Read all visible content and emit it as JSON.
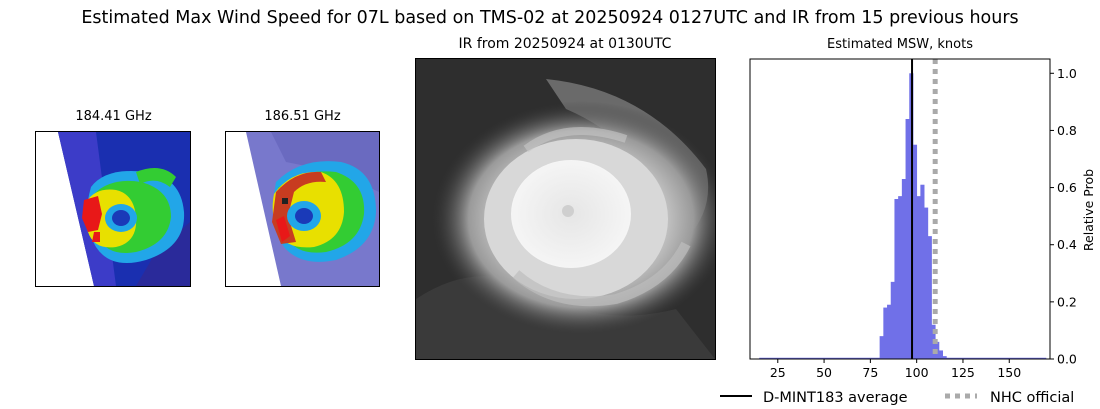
{
  "figure": {
    "title": "Estimated Max Wind Speed for 07L based on TMS-02 at 20250924 0127UTC and IR from 15 previous hours"
  },
  "panels": {
    "mw1_title": "184.41 GHz",
    "mw2_title": "186.51 GHz",
    "ir_title": "IR from 20250924 at 0130UTC"
  },
  "chart_data": {
    "type": "bar",
    "title": "Estimated MSW, knots",
    "xlabel": "",
    "ylabel": "Relative Prob",
    "xlim": [
      10,
      172
    ],
    "ylim": [
      0,
      1.05
    ],
    "xticks": [
      25,
      50,
      75,
      100,
      125,
      150
    ],
    "yticks": [
      0.0,
      0.2,
      0.4,
      0.6,
      0.8,
      1.0
    ],
    "ytick_labels": [
      "0.0",
      "0.2",
      "0.4",
      "0.6",
      "0.8",
      "1.0"
    ],
    "bar_color": "#7070e8",
    "bins": [
      {
        "x": 81,
        "value": 0.08
      },
      {
        "x": 83,
        "value": 0.18
      },
      {
        "x": 85,
        "value": 0.19
      },
      {
        "x": 87,
        "value": 0.27
      },
      {
        "x": 89,
        "value": 0.56
      },
      {
        "x": 91,
        "value": 0.57
      },
      {
        "x": 93,
        "value": 0.63
      },
      {
        "x": 95,
        "value": 0.84
      },
      {
        "x": 97,
        "value": 1.0
      },
      {
        "x": 99,
        "value": 0.75
      },
      {
        "x": 101,
        "value": 0.57
      },
      {
        "x": 103,
        "value": 0.61
      },
      {
        "x": 105,
        "value": 0.53
      },
      {
        "x": 107,
        "value": 0.43
      },
      {
        "x": 109,
        "value": 0.12
      },
      {
        "x": 111,
        "value": 0.06
      },
      {
        "x": 113,
        "value": 0.03
      },
      {
        "x": 115,
        "value": 0.01
      }
    ],
    "baseline_range": [
      15,
      170
    ],
    "dmint_average": 97.5,
    "nhc_official": 110,
    "legend": [
      {
        "label": "D-MINT183 average",
        "color": "#000000",
        "style": "solid"
      },
      {
        "label": "NHC official",
        "color": "#aaaaaa",
        "style": "dotted"
      }
    ],
    "legend_position": "below"
  }
}
